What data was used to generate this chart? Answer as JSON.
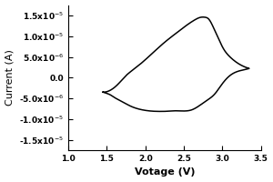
{
  "xlabel": "Votage (V)",
  "ylabel": "Current (A)",
  "xlim": [
    1.0,
    3.5
  ],
  "ylim": [
    -1.75e-05,
    1.75e-05
  ],
  "xticks": [
    1.0,
    1.5,
    2.0,
    2.5,
    3.0,
    3.5
  ],
  "yticks": [
    -1.5e-05,
    -1e-05,
    -5e-06,
    0.0,
    5e-06,
    1e-05,
    1.5e-05
  ],
  "line_color": "#000000",
  "line_width": 1.1,
  "background_color": "#ffffff",
  "xlabel_fontsize": 8,
  "ylabel_fontsize": 8,
  "tick_fontsize": 6.5
}
